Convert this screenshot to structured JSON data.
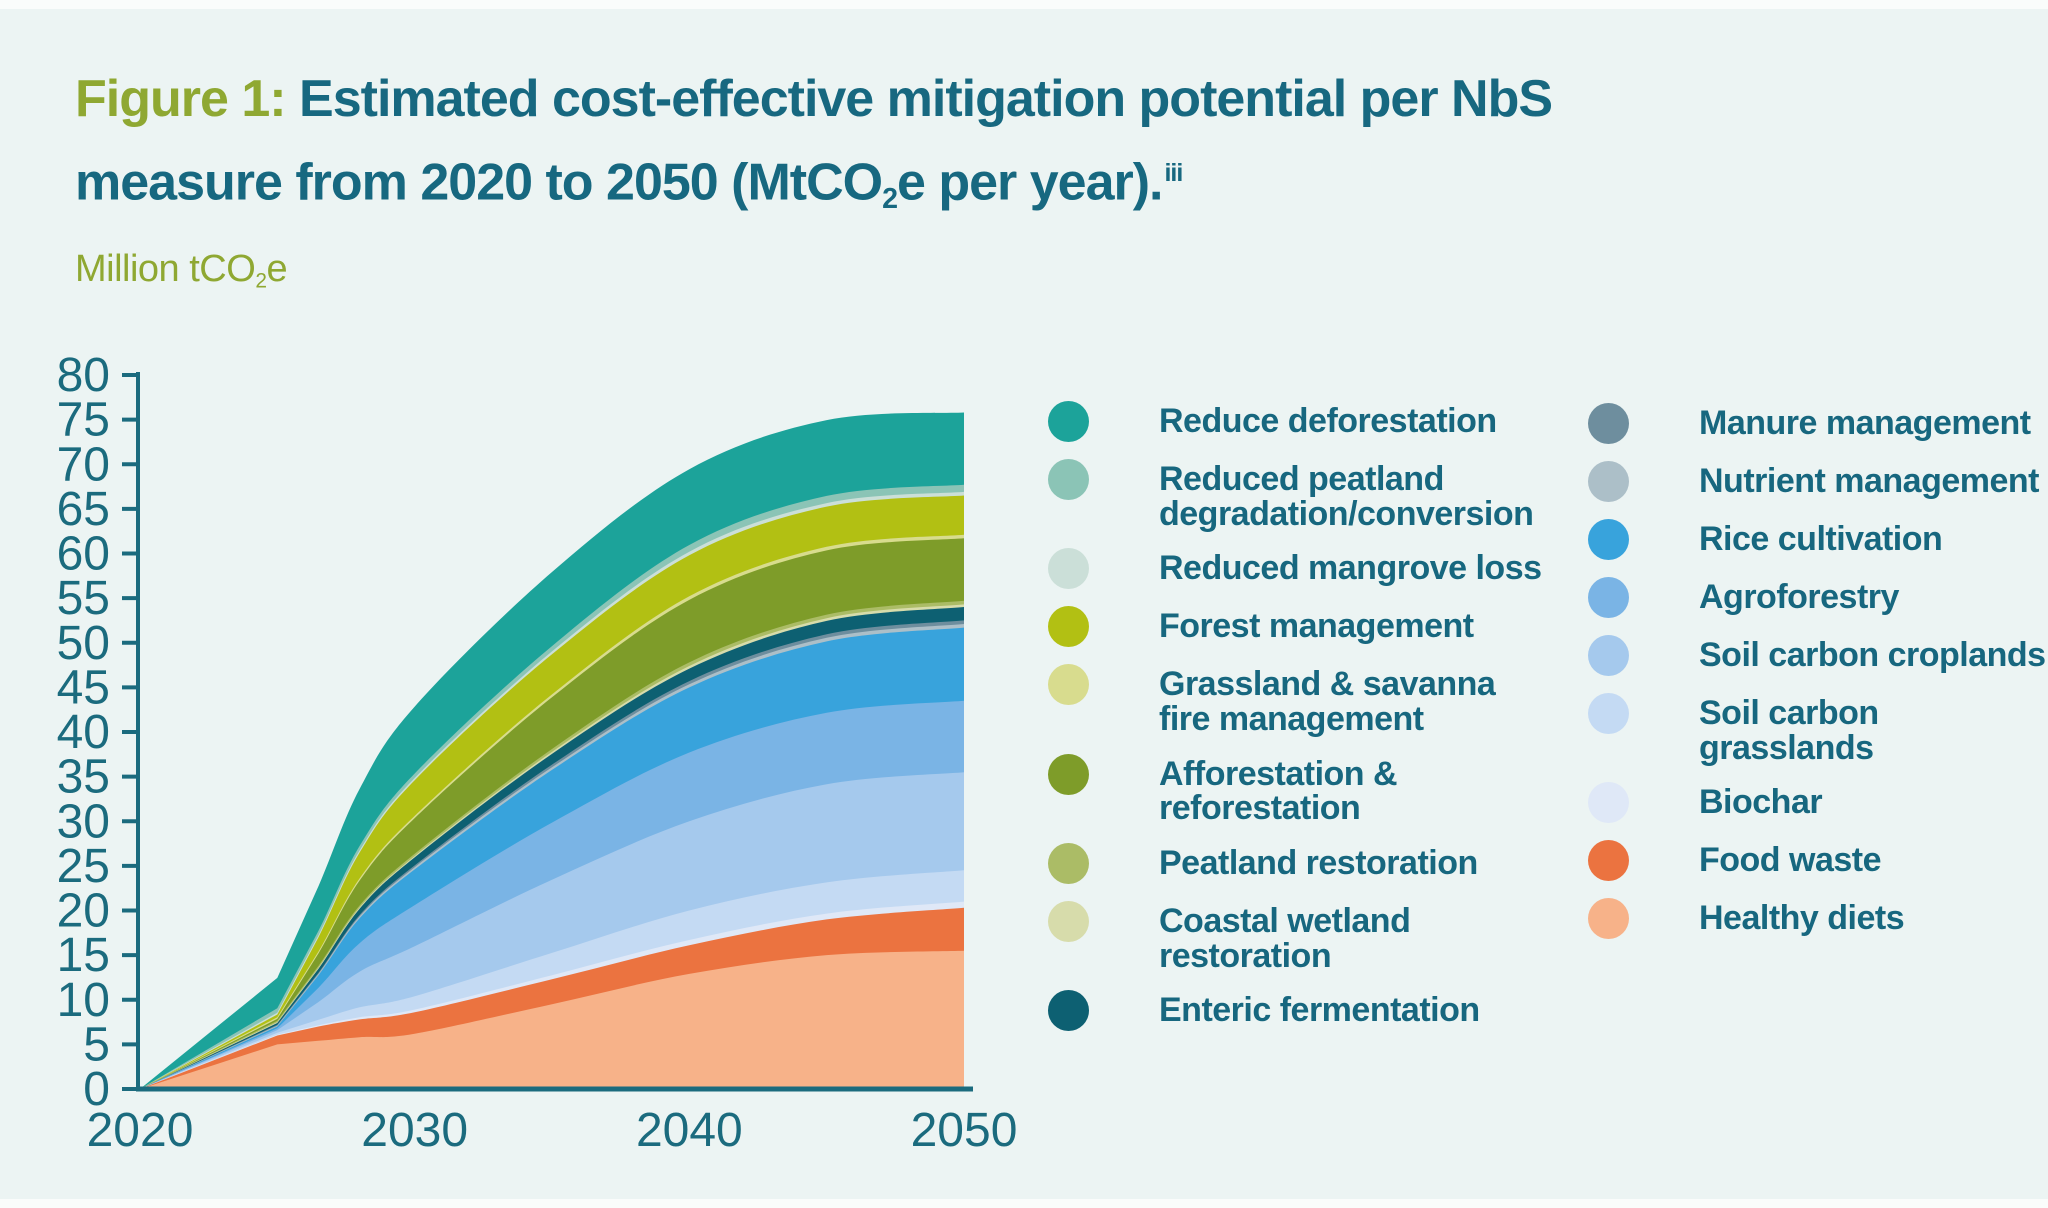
{
  "figure": {
    "label": "Figure 1:",
    "title_line1_rest": " Estimated cost-effective mitigation potential per NbS",
    "title_line2_pre": "measure from 2020 to 2050 (MtCO",
    "title_sub": "2",
    "title_line2_post": "e per year).",
    "title_sup": "iii",
    "unit_pre": "Million tCO",
    "unit_sub": "2",
    "unit_post": "e"
  },
  "theme": {
    "background": "#ECF4F3",
    "edge_strip": "#FAFCFB",
    "title_teal": "#176880",
    "figure_label_olive": "#8FA832",
    "axis_color": "#1B6B7E",
    "axis_text_color": "#1B6B7E",
    "legend_text_color": "#17677F"
  },
  "chart_data": {
    "type": "area",
    "stacked": true,
    "title": "Estimated cost-effective mitigation potential per NbS measure from 2020 to 2050 (MtCO2e per year)",
    "ylabel": "Million tCO2e",
    "xlabel": "",
    "xlim": [
      2020,
      2050
    ],
    "ylim": [
      0,
      80
    ],
    "xticks": [
      2020,
      2030,
      2040,
      2050
    ],
    "yticks": [
      0,
      5,
      10,
      15,
      20,
      25,
      30,
      35,
      40,
      45,
      50,
      55,
      60,
      65,
      70,
      75,
      80
    ],
    "grid": false,
    "legend_position": "right",
    "stack_order": "bottom-to-top",
    "x_years": [
      2020,
      2022.5,
      2025,
      2026.5,
      2028,
      2030,
      2035,
      2040,
      2045,
      2050
    ],
    "series": [
      {
        "name": "Healthy diets",
        "color": "#F7B289",
        "values": [
          0,
          2.5,
          5.0,
          5.4,
          5.8,
          6.2,
          9.5,
          12.9,
          15.0,
          15.5
        ]
      },
      {
        "name": "Food waste",
        "color": "#EB7340",
        "values": [
          0,
          0.5,
          1.0,
          1.6,
          2.0,
          2.4,
          2.8,
          3.2,
          4.0,
          4.8
        ]
      },
      {
        "name": "Biochar",
        "color": "#DFE8F7",
        "values": [
          0,
          0.05,
          0.1,
          0.15,
          0.25,
          0.3,
          0.45,
          0.6,
          0.65,
          0.7
        ]
      },
      {
        "name": "Soil carbon grasslands",
        "color": "#C4DAF3",
        "values": [
          0,
          0.1,
          0.2,
          0.6,
          1.1,
          1.5,
          2.5,
          3.3,
          3.5,
          3.5
        ]
      },
      {
        "name": "Soil carbon croplands",
        "color": "#A5C9ED",
        "values": [
          0,
          0.15,
          0.3,
          2.0,
          4.0,
          5.6,
          8.2,
          10.0,
          11.0,
          11.0
        ]
      },
      {
        "name": "Agroforestry",
        "color": "#7AB4E5",
        "values": [
          0,
          0.1,
          0.2,
          1.6,
          3.2,
          4.6,
          6.4,
          7.7,
          8.0,
          8.0
        ]
      },
      {
        "name": "Rice cultivation",
        "color": "#38A3DC",
        "values": [
          0,
          0.1,
          0.2,
          1.4,
          2.8,
          4.0,
          5.9,
          7.3,
          8.0,
          8.2
        ]
      },
      {
        "name": "Nutrient management",
        "color": "#ACBFC8",
        "values": [
          0,
          0.05,
          0.1,
          0.15,
          0.2,
          0.25,
          0.3,
          0.35,
          0.4,
          0.4
        ]
      },
      {
        "name": "Manure management",
        "color": "#6E8E9E",
        "values": [
          0,
          0.05,
          0.1,
          0.12,
          0.16,
          0.2,
          0.3,
          0.35,
          0.4,
          0.4
        ]
      },
      {
        "name": "Enteric fermentation",
        "color": "#0D6072",
        "values": [
          0,
          0.1,
          0.2,
          0.45,
          0.7,
          0.9,
          1.2,
          1.4,
          1.5,
          1.5
        ]
      },
      {
        "name": "Coastal wetland restoration",
        "color": "#D7DCAB",
        "values": [
          0,
          0.05,
          0.1,
          0.12,
          0.14,
          0.15,
          0.22,
          0.3,
          0.3,
          0.3
        ]
      },
      {
        "name": "Peatland restoration",
        "color": "#ABBC66",
        "values": [
          0,
          0.08,
          0.15,
          0.2,
          0.22,
          0.25,
          0.32,
          0.4,
          0.4,
          0.4
        ]
      },
      {
        "name": "Afforestation & reforestation",
        "color": "#7E9C29",
        "values": [
          0,
          0.1,
          0.2,
          1.4,
          2.8,
          4.0,
          5.8,
          7.0,
          7.2,
          7.0
        ]
      },
      {
        "name": "Grassland & savanna fire management",
        "color": "#D8DC8E",
        "values": [
          0,
          0.1,
          0.2,
          0.22,
          0.24,
          0.25,
          0.32,
          0.4,
          0.4,
          0.4
        ]
      },
      {
        "name": "Forest management",
        "color": "#B2C013",
        "values": [
          0,
          0.15,
          0.3,
          1.6,
          2.9,
          4.0,
          4.5,
          4.6,
          4.5,
          4.4
        ]
      },
      {
        "name": "Reduced mangrove loss",
        "color": "#CBDFD8",
        "values": [
          0,
          0.1,
          0.2,
          0.22,
          0.24,
          0.25,
          0.32,
          0.4,
          0.4,
          0.4
        ]
      },
      {
        "name": "Reduced peatland degradation/conversion",
        "color": "#8BC4B6",
        "values": [
          0,
          0.25,
          0.5,
          0.5,
          0.5,
          0.5,
          0.6,
          0.75,
          0.8,
          0.8
        ]
      },
      {
        "name": "Reduce deforestation",
        "color": "#1CA39A",
        "values": [
          0,
          1.7,
          3.4,
          5.0,
          6.4,
          7.5,
          8.3,
          8.5,
          8.5,
          8.1
        ]
      }
    ],
    "legend": {
      "left_column": [
        {
          "name": "Reduce deforestation",
          "lines": [
            "Reduce deforestation"
          ]
        },
        {
          "name": "Reduced peatland degradation/conversion",
          "lines": [
            "Reduced peatland",
            "degradation/conversion"
          ]
        },
        {
          "name": "Reduced mangrove loss",
          "lines": [
            "Reduced mangrove loss"
          ]
        },
        {
          "name": "Forest management",
          "lines": [
            "Forest management"
          ]
        },
        {
          "name": "Grassland & savanna fire management",
          "lines": [
            "Grassland & savanna",
            "fire management"
          ]
        },
        {
          "name": "Afforestation & reforestation",
          "lines": [
            "Afforestation & reforestation"
          ]
        },
        {
          "name": "Peatland restoration",
          "lines": [
            "Peatland restoration"
          ]
        },
        {
          "name": "Coastal wetland restoration",
          "lines": [
            "Coastal wetland restoration"
          ]
        },
        {
          "name": "Enteric fermentation",
          "lines": [
            "Enteric fermentation"
          ]
        }
      ],
      "right_column": [
        {
          "name": "Manure management",
          "lines": [
            "Manure management"
          ]
        },
        {
          "name": "Nutrient management",
          "lines": [
            "Nutrient management"
          ]
        },
        {
          "name": "Rice cultivation",
          "lines": [
            "Rice cultivation"
          ]
        },
        {
          "name": "Agroforestry",
          "lines": [
            "Agroforestry"
          ]
        },
        {
          "name": "Soil carbon croplands",
          "lines": [
            "Soil carbon croplands"
          ]
        },
        {
          "name": "Soil carbon grasslands",
          "lines": [
            "Soil carbon grasslands"
          ]
        },
        {
          "name": "Biochar",
          "lines": [
            "Biochar"
          ]
        },
        {
          "name": "Food waste",
          "lines": [
            "Food waste"
          ]
        },
        {
          "name": "Healthy diets",
          "lines": [
            "Healthy diets"
          ]
        }
      ]
    }
  }
}
